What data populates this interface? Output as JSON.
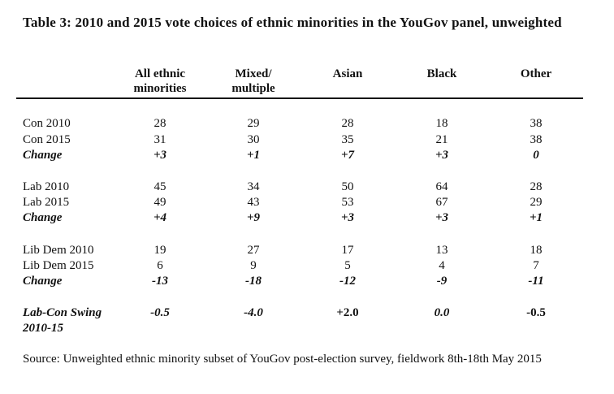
{
  "title": "Table 3: 2010 and 2015 vote choices of ethnic minorities in the YouGov panel, unweighted",
  "columns": [
    "All ethnic minorities",
    "Mixed/ multiple",
    "Asian",
    "Black",
    "Other"
  ],
  "rows": [
    {
      "label": "Con 2010",
      "values": [
        "28",
        "29",
        "28",
        "18",
        "38"
      ]
    },
    {
      "label": "Con 2015",
      "values": [
        "31",
        "30",
        "35",
        "21",
        "38"
      ]
    },
    {
      "label": "Change",
      "values": [
        "+3",
        "+1",
        "+7",
        "+3",
        "0"
      ]
    },
    {
      "label": "Lab 2010",
      "values": [
        "45",
        "34",
        "50",
        "64",
        "28"
      ]
    },
    {
      "label": "Lab 2015",
      "values": [
        "49",
        "43",
        "53",
        "67",
        "29"
      ]
    },
    {
      "label": "Change",
      "values": [
        "+4",
        "+9",
        "+3",
        "+3",
        "+1"
      ]
    },
    {
      "label": "Lib Dem 2010",
      "values": [
        "19",
        "27",
        "17",
        "13",
        "18"
      ]
    },
    {
      "label": "Lib Dem 2015",
      "values": [
        "6",
        "9",
        "5",
        "4",
        "7"
      ]
    },
    {
      "label": "Change",
      "values": [
        "-13",
        "-18",
        "-12",
        "-9",
        "-11"
      ]
    },
    {
      "label": "Lab-Con Swing 2010-15",
      "values": [
        "-0.5",
        "-4.0",
        "+2.0",
        "0.0",
        "-0.5"
      ]
    }
  ],
  "source": "Source: Unweighted ethnic minority subset of YouGov post-election survey, fieldwork 8th-18th May 2015"
}
